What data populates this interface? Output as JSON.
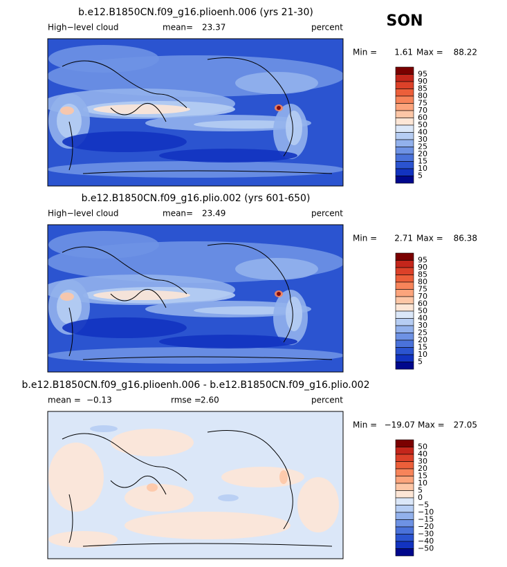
{
  "season": "SON",
  "panels": [
    {
      "title": "b.e12.B1850CN.f09_g16.plioenh.006 (yrs 21-30)",
      "header": [
        "High−level cloud",
        "mean=",
        "23.37",
        "percent"
      ],
      "stats": [
        "Min =",
        "1.61",
        "Max =",
        "88.22"
      ],
      "colorbar": {
        "labels": [
          "95",
          "90",
          "85",
          "80",
          "75",
          "70",
          "60",
          "50",
          "40",
          "30",
          "25",
          "20",
          "15",
          "10",
          "5"
        ],
        "colors": [
          "#7a0000",
          "#c4261b",
          "#dc4129",
          "#ec5f3a",
          "#f7845a",
          "#fca47c",
          "#fdc6a6",
          "#fde6d6",
          "#dbe7f8",
          "#b6cdf3",
          "#92b1ec",
          "#6e92e4",
          "#4a72da",
          "#2b54d0",
          "#1233c0",
          "#00088c"
        ]
      }
    },
    {
      "title": "b.e12.B1850CN.f09_g16.plio.002 (yrs 601-650)",
      "header": [
        "High−level cloud",
        "mean=",
        "23.49",
        "percent"
      ],
      "stats": [
        "Min =",
        "2.71",
        "Max =",
        "86.38"
      ],
      "colorbar": {
        "labels": [
          "95",
          "90",
          "85",
          "80",
          "75",
          "70",
          "60",
          "50",
          "40",
          "30",
          "25",
          "20",
          "15",
          "10",
          "5"
        ],
        "colors": [
          "#7a0000",
          "#c4261b",
          "#dc4129",
          "#ec5f3a",
          "#f7845a",
          "#fca47c",
          "#fdc6a6",
          "#fde6d6",
          "#dbe7f8",
          "#b6cdf3",
          "#92b1ec",
          "#6e92e4",
          "#4a72da",
          "#2b54d0",
          "#1233c0",
          "#00088c"
        ]
      }
    },
    {
      "title": "b.e12.B1850CN.f09_g16.plioenh.006 - b.e12.B1850CN.f09_g16.plio.002",
      "header": [
        "mean =",
        "−0.13",
        "rmse =",
        "2.60",
        "percent"
      ],
      "stats": [
        "Min =",
        "−19.07",
        "Max =",
        "27.05"
      ],
      "colorbar": {
        "labels": [
          "50",
          "40",
          "30",
          "20",
          "15",
          "10",
          "5",
          "0",
          "−5",
          "−10",
          "−15",
          "−20",
          "−30",
          "−40",
          "−50"
        ],
        "colors": [
          "#7a0000",
          "#c4261b",
          "#dc4129",
          "#ec5f3a",
          "#f7845a",
          "#fca47c",
          "#fdc6a6",
          "#fde6d6",
          "#dbe7f8",
          "#b6cdf3",
          "#92b1ec",
          "#6e92e4",
          "#4a72da",
          "#2b54d0",
          "#1233c0",
          "#00088c"
        ]
      }
    }
  ]
}
